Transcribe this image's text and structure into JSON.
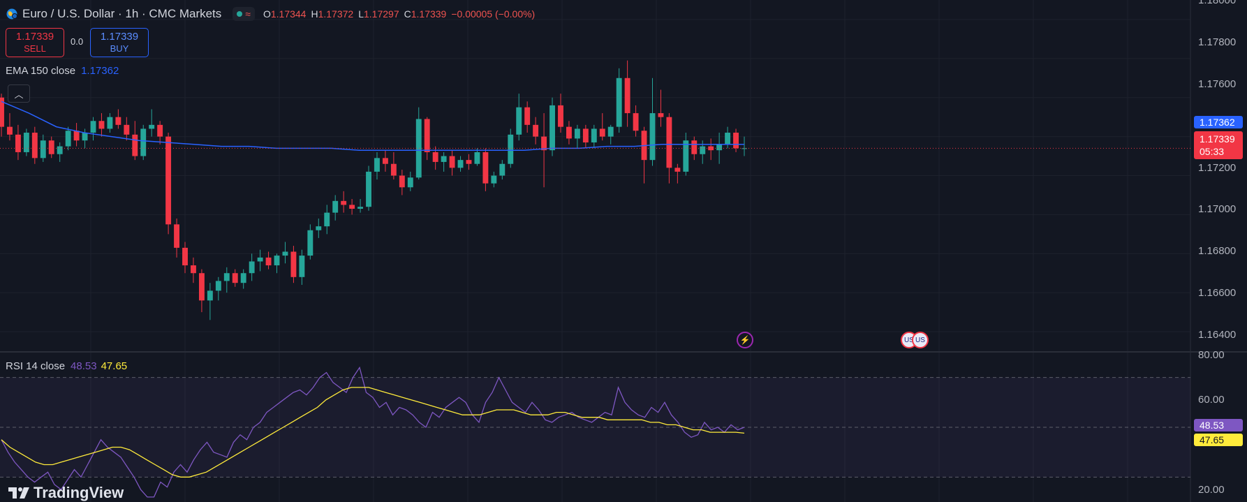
{
  "header": {
    "title": "Euro / U.S. Dollar · 1h · CMC Markets",
    "ohlc": [
      {
        "k": "O",
        "v": "1.17344"
      },
      {
        "k": "H",
        "v": "1.17372"
      },
      {
        "k": "L",
        "v": "1.17297"
      },
      {
        "k": "C",
        "v": "1.17339"
      }
    ],
    "change": "−0.00005 (−0.00%)",
    "market_icon": "wave-icon"
  },
  "trade": {
    "sell_price": "1.17339",
    "sell_label": "SELL",
    "spread": "0.0",
    "buy_price": "1.17339",
    "buy_label": "BUY"
  },
  "ema_legend": {
    "label": "EMA 150 close",
    "value": "1.17362"
  },
  "rsi_legend": {
    "label": "RSI 14 close",
    "value": "48.53",
    "ma_value": "47.65"
  },
  "price_axis": {
    "labels": [
      "1.18000",
      "1.17800",
      "1.17600",
      "1.17400",
      "1.17200",
      "1.17000",
      "1.16800",
      "1.16600",
      "1.16400"
    ],
    "ema_tag": "1.17362",
    "last_price_tag": "1.17339",
    "countdown": "05:33"
  },
  "rsi_axis": {
    "labels": [
      "80.00",
      "60.00",
      "20.00"
    ],
    "rsi_tag": "48.53",
    "ma_tag": "47.65"
  },
  "branding": {
    "logo_text": "TradingView"
  },
  "colors": {
    "up": "#26a69a",
    "down": "#f23645",
    "ema": "#2962ff",
    "rsi": "#7e57c2",
    "rsi_ma": "#ffeb3b",
    "background": "#131722"
  },
  "chart_data": [
    {
      "type": "candlestick",
      "title": "Euro / U.S. Dollar · 1h · CMC Markets",
      "ylim": [
        1.163,
        1.181
      ],
      "grid": true,
      "candles": [
        [
          1.176,
          1.1762,
          1.174,
          1.1745
        ],
        [
          1.1745,
          1.1752,
          1.1738,
          1.1741
        ],
        [
          1.1741,
          1.1746,
          1.1728,
          1.1732
        ],
        [
          1.1732,
          1.1744,
          1.173,
          1.1742
        ],
        [
          1.1742,
          1.1745,
          1.1726,
          1.1729
        ],
        [
          1.1729,
          1.1741,
          1.1727,
          1.1738
        ],
        [
          1.1738,
          1.174,
          1.1729,
          1.1731
        ],
        [
          1.1731,
          1.1737,
          1.1727,
          1.1735
        ],
        [
          1.1735,
          1.1745,
          1.1733,
          1.1743
        ],
        [
          1.1743,
          1.1747,
          1.1735,
          1.1738
        ],
        [
          1.1738,
          1.1744,
          1.1734,
          1.1742
        ],
        [
          1.1742,
          1.175,
          1.1738,
          1.1748
        ],
        [
          1.1748,
          1.1752,
          1.174,
          1.1744
        ],
        [
          1.1744,
          1.1752,
          1.1742,
          1.175
        ],
        [
          1.175,
          1.1754,
          1.1744,
          1.1746
        ],
        [
          1.1746,
          1.175,
          1.1738,
          1.1741
        ],
        [
          1.1741,
          1.1748,
          1.1728,
          1.173
        ],
        [
          1.173,
          1.1746,
          1.1728,
          1.1744
        ],
        [
          1.1744,
          1.1754,
          1.174,
          1.1746
        ],
        [
          1.1746,
          1.1748,
          1.1736,
          1.174
        ],
        [
          1.174,
          1.1742,
          1.169,
          1.1695
        ],
        [
          1.1695,
          1.1698,
          1.1678,
          1.1683
        ],
        [
          1.1683,
          1.1686,
          1.167,
          1.1674
        ],
        [
          1.1674,
          1.1678,
          1.1665,
          1.167
        ],
        [
          1.167,
          1.1672,
          1.165,
          1.1656
        ],
        [
          1.1656,
          1.1665,
          1.1646,
          1.1661
        ],
        [
          1.1661,
          1.1668,
          1.1656,
          1.1666
        ],
        [
          1.1666,
          1.1673,
          1.166,
          1.167
        ],
        [
          1.167,
          1.1672,
          1.1663,
          1.1665
        ],
        [
          1.1665,
          1.1672,
          1.1662,
          1.167
        ],
        [
          1.167,
          1.168,
          1.1666,
          1.1676
        ],
        [
          1.1676,
          1.1682,
          1.1671,
          1.1678
        ],
        [
          1.1678,
          1.1681,
          1.1672,
          1.1674
        ],
        [
          1.1674,
          1.168,
          1.167,
          1.1679
        ],
        [
          1.1679,
          1.1686,
          1.1675,
          1.1681
        ],
        [
          1.1681,
          1.1684,
          1.1665,
          1.1668
        ],
        [
          1.1668,
          1.1682,
          1.1664,
          1.1679
        ],
        [
          1.1679,
          1.1695,
          1.1677,
          1.1692
        ],
        [
          1.1692,
          1.1698,
          1.1688,
          1.1694
        ],
        [
          1.1694,
          1.1705,
          1.169,
          1.1701
        ],
        [
          1.1701,
          1.171,
          1.1697,
          1.1707
        ],
        [
          1.1707,
          1.1712,
          1.1701,
          1.1705
        ],
        [
          1.1705,
          1.1708,
          1.17,
          1.1703
        ],
        [
          1.1703,
          1.1708,
          1.1701,
          1.1704
        ],
        [
          1.1704,
          1.1725,
          1.1702,
          1.1722
        ],
        [
          1.1722,
          1.1732,
          1.1718,
          1.1729
        ],
        [
          1.1729,
          1.1733,
          1.1722,
          1.1726
        ],
        [
          1.1726,
          1.1732,
          1.1718,
          1.172
        ],
        [
          1.172,
          1.1723,
          1.171,
          1.1714
        ],
        [
          1.1714,
          1.1722,
          1.1712,
          1.1719
        ],
        [
          1.1719,
          1.1755,
          1.1718,
          1.1749
        ],
        [
          1.1749,
          1.175,
          1.1728,
          1.1732
        ],
        [
          1.1732,
          1.1735,
          1.1723,
          1.1727
        ],
        [
          1.1727,
          1.1732,
          1.1722,
          1.173
        ],
        [
          1.173,
          1.1733,
          1.172,
          1.1724
        ],
        [
          1.1724,
          1.173,
          1.1722,
          1.1728
        ],
        [
          1.1728,
          1.1731,
          1.1723,
          1.1726
        ],
        [
          1.1726,
          1.1734,
          1.1725,
          1.1732
        ],
        [
          1.1732,
          1.1734,
          1.1712,
          1.1716
        ],
        [
          1.1716,
          1.1722,
          1.1714,
          1.172
        ],
        [
          1.172,
          1.1728,
          1.1718,
          1.1726
        ],
        [
          1.1726,
          1.1744,
          1.1724,
          1.1741
        ],
        [
          1.1741,
          1.1762,
          1.1738,
          1.1755
        ],
        [
          1.1755,
          1.1758,
          1.1742,
          1.1746
        ],
        [
          1.1746,
          1.175,
          1.1736,
          1.174
        ],
        [
          1.174,
          1.1752,
          1.1714,
          1.1733
        ],
        [
          1.1733,
          1.176,
          1.173,
          1.1756
        ],
        [
          1.1756,
          1.1762,
          1.1742,
          1.1745
        ],
        [
          1.1745,
          1.1748,
          1.1736,
          1.1739
        ],
        [
          1.1739,
          1.1746,
          1.1734,
          1.1744
        ],
        [
          1.1744,
          1.1746,
          1.1734,
          1.1737
        ],
        [
          1.1737,
          1.1746,
          1.1734,
          1.1744
        ],
        [
          1.1744,
          1.1752,
          1.1738,
          1.174
        ],
        [
          1.174,
          1.1746,
          1.1736,
          1.1745
        ],
        [
          1.1745,
          1.1775,
          1.1742,
          1.177
        ],
        [
          1.177,
          1.1779,
          1.1745,
          1.1752
        ],
        [
          1.1752,
          1.1756,
          1.174,
          1.1743
        ],
        [
          1.1743,
          1.1745,
          1.1716,
          1.1728
        ],
        [
          1.1728,
          1.177,
          1.1725,
          1.1752
        ],
        [
          1.1752,
          1.1764,
          1.1745,
          1.175
        ],
        [
          1.175,
          1.1752,
          1.1716,
          1.1724
        ],
        [
          1.1724,
          1.1726,
          1.1716,
          1.1722
        ],
        [
          1.1722,
          1.1742,
          1.172,
          1.1738
        ],
        [
          1.1738,
          1.174,
          1.1728,
          1.1731
        ],
        [
          1.1731,
          1.1738,
          1.1726,
          1.1735
        ],
        [
          1.1735,
          1.1739,
          1.1728,
          1.1733
        ],
        [
          1.1733,
          1.1742,
          1.1726,
          1.1736
        ],
        [
          1.1736,
          1.1745,
          1.1734,
          1.1742
        ],
        [
          1.1742,
          1.1744,
          1.1732,
          1.1734
        ],
        [
          1.1734,
          1.174,
          1.173,
          1.1734
        ]
      ],
      "ema": [
        1.1758,
        1.1752,
        1.1745,
        1.1742,
        1.174,
        1.1738,
        1.1737,
        1.1736,
        1.1735,
        1.1735,
        1.1734,
        1.1734,
        1.1734,
        1.1733,
        1.1733,
        1.1733,
        1.1733,
        1.1733,
        1.1733,
        1.1733,
        1.1734,
        1.1734,
        1.1735,
        1.1735,
        1.1736,
        1.1736,
        1.1736,
        1.1736
      ]
    },
    {
      "type": "line",
      "title": "RSI 14 close",
      "ylim": [
        20,
        80
      ],
      "bands": [
        30,
        50,
        70
      ],
      "series": [
        {
          "name": "RSI",
          "values": [
            45,
            40,
            36,
            33,
            30,
            28,
            30,
            32,
            27,
            25,
            29,
            33,
            30,
            35,
            40,
            45,
            42,
            40,
            38,
            34,
            30,
            25,
            22,
            22,
            28,
            26,
            32,
            35,
            32,
            37,
            41,
            44,
            40,
            39,
            38,
            44,
            47,
            45,
            50,
            52,
            56,
            58,
            60,
            62,
            64,
            65,
            63,
            66,
            70,
            72,
            68,
            66,
            64,
            70,
            74,
            64,
            62,
            58,
            60,
            55,
            58,
            57,
            55,
            52,
            50,
            56,
            54,
            58,
            60,
            62,
            60,
            55,
            52,
            60,
            64,
            70,
            65,
            60,
            58,
            56,
            60,
            57,
            53,
            52,
            54,
            55,
            56,
            54,
            53,
            52,
            54,
            56,
            55,
            66,
            60,
            57,
            55,
            54,
            58,
            56,
            60,
            55,
            52,
            48,
            46,
            47,
            52,
            49,
            50,
            48,
            51,
            49,
            50
          ]
        },
        {
          "name": "MA",
          "values": [
            45,
            42,
            40,
            38,
            36,
            35,
            35,
            36,
            37,
            38,
            39,
            40,
            41,
            42,
            42,
            41,
            39,
            37,
            35,
            33,
            31,
            30,
            30,
            31,
            32,
            34,
            36,
            38,
            40,
            42,
            44,
            46,
            48,
            50,
            52,
            54,
            56,
            58,
            61,
            63,
            65,
            66,
            66,
            66,
            65,
            64,
            63,
            62,
            61,
            60,
            59,
            58,
            57,
            56,
            55,
            55,
            55,
            56,
            57,
            57,
            57,
            56,
            55,
            55,
            55,
            56,
            56,
            55,
            54,
            54,
            54,
            53,
            53,
            53,
            53,
            53,
            52,
            52,
            51,
            51,
            50,
            49,
            49,
            48,
            48,
            48,
            48,
            47.65
          ]
        }
      ]
    }
  ]
}
